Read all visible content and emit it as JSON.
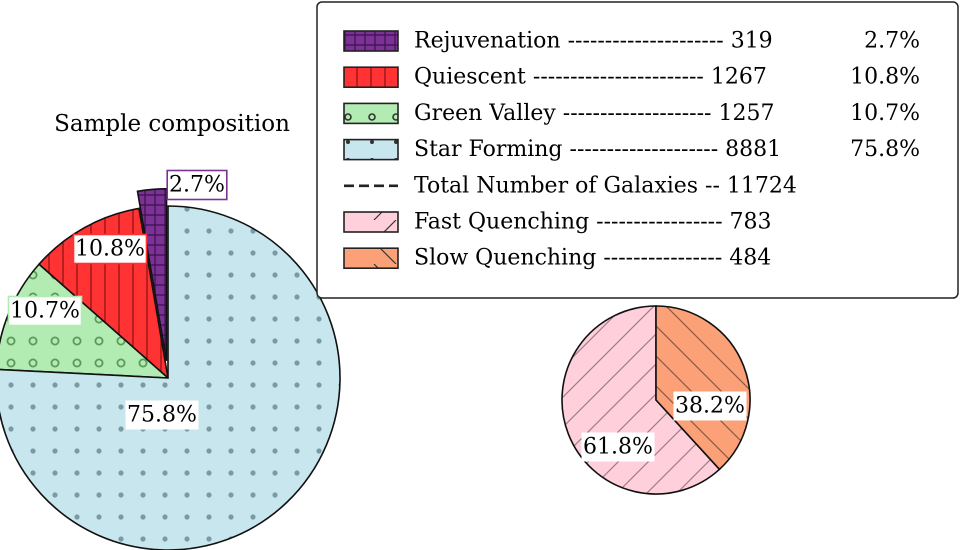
{
  "chart_data": [
    {
      "type": "pie",
      "title": "Sample composition",
      "slices": [
        {
          "name": "Rejuvenation",
          "count": 319,
          "value": 2.7,
          "label": "2.7%",
          "color": "#7b3294",
          "hatch": "grid",
          "explode": true
        },
        {
          "name": "Quiescent",
          "count": 1267,
          "value": 10.8,
          "label": "10.8%",
          "color": "#ff3333",
          "hatch": "vertical"
        },
        {
          "name": "Green Valley",
          "count": 1257,
          "value": 10.7,
          "label": "10.7%",
          "color": "#b3ecb3",
          "hatch": "circles"
        },
        {
          "name": "Star Forming",
          "count": 8881,
          "value": 75.8,
          "label": "75.8%",
          "color": "#c8e6ee",
          "hatch": "dots"
        }
      ]
    },
    {
      "type": "pie",
      "title": "",
      "slices": [
        {
          "name": "Fast Quenching",
          "count": 783,
          "value": 61.8,
          "label": "61.8%",
          "color": "#ffd0dc",
          "hatch": "diagonal"
        },
        {
          "name": "Slow Quenching",
          "count": 484,
          "value": 38.2,
          "label": "38.2%",
          "color": "#fca078",
          "hatch": "backdiagonal"
        }
      ]
    }
  ],
  "legend": {
    "placement": "top-right",
    "entries": [
      {
        "label": "Rejuvenation --------------------- 319",
        "pct": "2.7%",
        "swatch": "rejuvenation"
      },
      {
        "label": "Quiescent  ----------------------- 1267",
        "pct": "10.8%",
        "swatch": "quiescent"
      },
      {
        "label": "Green Valley -------------------- 1257",
        "pct": "10.7%",
        "swatch": "greenvalley"
      },
      {
        "label": "Star Forming -------------------- 8881",
        "pct": "75.8%",
        "swatch": "starforming"
      },
      {
        "label": "Total Number of Galaxies -- 11724",
        "pct": "",
        "swatch": "dashed-line"
      },
      {
        "label": "Fast Quenching ----------------- 783",
        "pct": "",
        "swatch": "fastquenching"
      },
      {
        "label": "Slow Quenching ---------------- 484",
        "pct": "",
        "swatch": "slowquenching"
      }
    ]
  }
}
